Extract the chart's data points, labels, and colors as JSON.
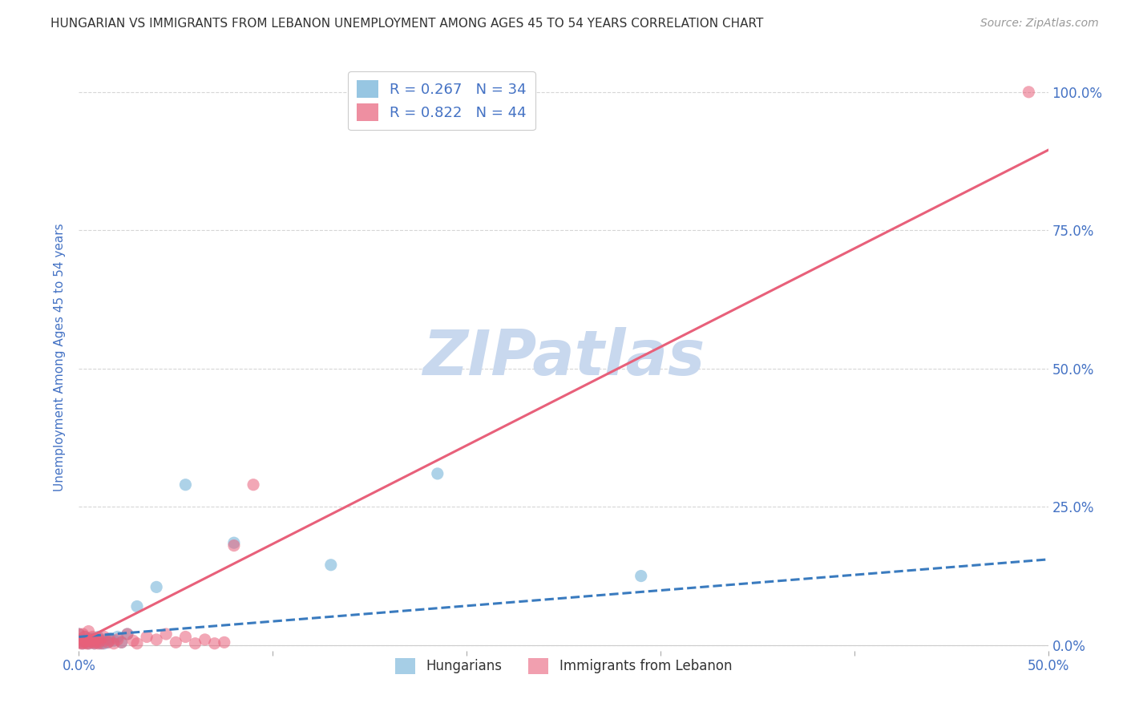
{
  "title": "HUNGARIAN VS IMMIGRANTS FROM LEBANON UNEMPLOYMENT AMONG AGES 45 TO 54 YEARS CORRELATION CHART",
  "source": "Source: ZipAtlas.com",
  "ylabel": "Unemployment Among Ages 45 to 54 years",
  "xlim": [
    0,
    0.5
  ],
  "ylim": [
    -0.01,
    1.05
  ],
  "xtick_positions": [
    0.0,
    0.1,
    0.2,
    0.3,
    0.4,
    0.5
  ],
  "xtick_labels": [
    "0.0%",
    "",
    "",
    "",
    "",
    "50.0%"
  ],
  "ytick_positions": [
    0.0,
    0.25,
    0.5,
    0.75,
    1.0
  ],
  "ytick_labels_right": [
    "0.0%",
    "25.0%",
    "50.0%",
    "75.0%",
    "100.0%"
  ],
  "watermark": "ZIPatlas",
  "legend_top": [
    {
      "label": "R = 0.267   N = 34",
      "color": "#6baed6"
    },
    {
      "label": "R = 0.822   N = 44",
      "color": "#e8607a"
    }
  ],
  "legend_bottom": [
    {
      "label": "Hungarians",
      "color": "#6baed6"
    },
    {
      "label": "Immigrants from Lebanon",
      "color": "#e8607a"
    }
  ],
  "hungarian_scatter": {
    "x": [
      0.0,
      0.0,
      0.0,
      0.002,
      0.003,
      0.003,
      0.004,
      0.005,
      0.005,
      0.006,
      0.007,
      0.007,
      0.008,
      0.008,
      0.009,
      0.01,
      0.01,
      0.011,
      0.012,
      0.013,
      0.014,
      0.015,
      0.016,
      0.018,
      0.02,
      0.022,
      0.025,
      0.03,
      0.04,
      0.055,
      0.08,
      0.13,
      0.185,
      0.29
    ],
    "y": [
      0.005,
      0.01,
      0.02,
      0.003,
      0.008,
      0.015,
      0.005,
      0.003,
      0.012,
      0.008,
      0.005,
      0.012,
      0.003,
      0.01,
      0.008,
      0.005,
      0.015,
      0.003,
      0.008,
      0.003,
      0.01,
      0.005,
      0.012,
      0.008,
      0.015,
      0.005,
      0.02,
      0.07,
      0.105,
      0.29,
      0.185,
      0.145,
      0.31,
      0.125
    ],
    "color": "#6baed6",
    "edgecolor": "#6baed6",
    "alpha": 0.55,
    "size": 120
  },
  "lebanon_scatter": {
    "x": [
      0.0,
      0.0,
      0.0,
      0.001,
      0.002,
      0.002,
      0.003,
      0.003,
      0.004,
      0.004,
      0.005,
      0.005,
      0.005,
      0.006,
      0.007,
      0.007,
      0.008,
      0.008,
      0.009,
      0.01,
      0.01,
      0.011,
      0.012,
      0.013,
      0.015,
      0.016,
      0.018,
      0.02,
      0.022,
      0.025,
      0.028,
      0.03,
      0.035,
      0.04,
      0.045,
      0.05,
      0.055,
      0.06,
      0.065,
      0.07,
      0.075,
      0.08,
      0.09,
      0.49
    ],
    "y": [
      0.005,
      0.01,
      0.02,
      0.003,
      0.003,
      0.02,
      0.005,
      0.015,
      0.003,
      0.008,
      0.01,
      0.025,
      0.003,
      0.008,
      0.005,
      0.015,
      0.003,
      0.01,
      0.005,
      0.003,
      0.012,
      0.008,
      0.003,
      0.015,
      0.005,
      0.008,
      0.003,
      0.01,
      0.005,
      0.02,
      0.008,
      0.003,
      0.015,
      0.01,
      0.02,
      0.005,
      0.015,
      0.003,
      0.01,
      0.003,
      0.005,
      0.18,
      0.29,
      1.0
    ],
    "color": "#e8607a",
    "edgecolor": "#e8607a",
    "alpha": 0.55,
    "size": 120
  },
  "hungarian_trend": {
    "x": [
      0.0,
      0.5
    ],
    "y": [
      0.015,
      0.155
    ],
    "color": "#3a7bbf",
    "linestyle": "--",
    "linewidth": 2.2
  },
  "lebanon_trend": {
    "x": [
      0.0,
      0.5
    ],
    "y": [
      0.005,
      0.895
    ],
    "color": "#e8607a",
    "linestyle": "-",
    "linewidth": 2.2
  },
  "background_color": "#ffffff",
  "grid_color": "#cccccc",
  "title_color": "#333333",
  "axis_label_color": "#4472c4",
  "tick_color": "#4472c4",
  "watermark_color": "#c8d8ee"
}
